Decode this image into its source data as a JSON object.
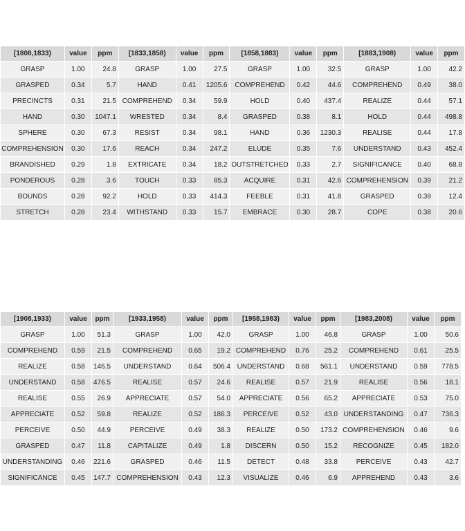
{
  "top_table": {
    "periods": [
      {
        "label": "[1808,1833)",
        "rows": [
          {
            "word": "GRASP",
            "value": "1.00",
            "ppm": "24.8"
          },
          {
            "word": "GRASPED",
            "value": "0.34",
            "ppm": "5.7"
          },
          {
            "word": "PRECINCTS",
            "value": "0.31",
            "ppm": "21.5"
          },
          {
            "word": "HAND",
            "value": "0.30",
            "ppm": "1047.1"
          },
          {
            "word": "SPHERE",
            "value": "0.30",
            "ppm": "67.3"
          },
          {
            "word": "COMPREHENSION",
            "value": "0.30",
            "ppm": "17.6"
          },
          {
            "word": "BRANDISHED",
            "value": "0.29",
            "ppm": "1.8"
          },
          {
            "word": "PONDEROUS",
            "value": "0.28",
            "ppm": "3.6"
          },
          {
            "word": "BOUNDS",
            "value": "0.28",
            "ppm": "92.2"
          },
          {
            "word": "STRETCH",
            "value": "0.28",
            "ppm": "23.4"
          }
        ]
      },
      {
        "label": "[1833,1858)",
        "rows": [
          {
            "word": "GRASP",
            "value": "1.00",
            "ppm": "27.5"
          },
          {
            "word": "HAND",
            "value": "0.41",
            "ppm": "1205.6"
          },
          {
            "word": "COMPREHEND",
            "value": "0.34",
            "ppm": "59.9"
          },
          {
            "word": "WRESTED",
            "value": "0.34",
            "ppm": "8.4"
          },
          {
            "word": "RESIST",
            "value": "0.34",
            "ppm": "98.1"
          },
          {
            "word": "REACH",
            "value": "0.34",
            "ppm": "247.2"
          },
          {
            "word": "EXTRICATE",
            "value": "0.34",
            "ppm": "18.2"
          },
          {
            "word": "TOUCH",
            "value": "0.33",
            "ppm": "85.3"
          },
          {
            "word": "HOLD",
            "value": "0.33",
            "ppm": "414.3"
          },
          {
            "word": "WITHSTAND",
            "value": "0.33",
            "ppm": "15.7"
          }
        ]
      },
      {
        "label": "[1858,1883)",
        "rows": [
          {
            "word": "GRASP",
            "value": "1.00",
            "ppm": "32.5"
          },
          {
            "word": "COMPREHEND",
            "value": "0.42",
            "ppm": "44.6"
          },
          {
            "word": "HOLD",
            "value": "0.40",
            "ppm": "437.4"
          },
          {
            "word": "GRASPED",
            "value": "0.38",
            "ppm": "8.1"
          },
          {
            "word": "HAND",
            "value": "0.36",
            "ppm": "1230.3"
          },
          {
            "word": "ELUDE",
            "value": "0.35",
            "ppm": "7.6"
          },
          {
            "word": "OUTSTRETCHED",
            "value": "0.33",
            "ppm": "2.7"
          },
          {
            "word": "ACQUIRE",
            "value": "0.31",
            "ppm": "42.6"
          },
          {
            "word": "FEEBLE",
            "value": "0.31",
            "ppm": "41.8"
          },
          {
            "word": "EMBRACE",
            "value": "0.30",
            "ppm": "28.7"
          }
        ]
      },
      {
        "label": "[1883,1908)",
        "rows": [
          {
            "word": "GRASP",
            "value": "1.00",
            "ppm": "42.2"
          },
          {
            "word": "COMPREHEND",
            "value": "0.49",
            "ppm": "38.0"
          },
          {
            "word": "REALIZE",
            "value": "0.44",
            "ppm": "57.1"
          },
          {
            "word": "HOLD",
            "value": "0.44",
            "ppm": "498.8"
          },
          {
            "word": "REALISE",
            "value": "0.44",
            "ppm": "17.8"
          },
          {
            "word": "UNDERSTAND",
            "value": "0.43",
            "ppm": "452.4"
          },
          {
            "word": "SIGNIFICANCE",
            "value": "0.40",
            "ppm": "68.8"
          },
          {
            "word": "COMPREHENSION",
            "value": "0.39",
            "ppm": "21.2"
          },
          {
            "word": "GRASPED",
            "value": "0.39",
            "ppm": "12.4"
          },
          {
            "word": "COPE",
            "value": "0.38",
            "ppm": "20.6"
          }
        ]
      }
    ]
  },
  "bottom_table": {
    "periods": [
      {
        "label": "[1908,1933)",
        "rows": [
          {
            "word": "GRASP",
            "value": "1.00",
            "ppm": "51.3"
          },
          {
            "word": "COMPREHEND",
            "value": "0.59",
            "ppm": "21.5"
          },
          {
            "word": "REALIZE",
            "value": "0.58",
            "ppm": "146.5"
          },
          {
            "word": "UNDERSTAND",
            "value": "0.58",
            "ppm": "476.5"
          },
          {
            "word": "REALISE",
            "value": "0.55",
            "ppm": "26.9"
          },
          {
            "word": "APPRECIATE",
            "value": "0.52",
            "ppm": "59.8"
          },
          {
            "word": "PERCEIVE",
            "value": "0.50",
            "ppm": "44.9"
          },
          {
            "word": "GRASPED",
            "value": "0.47",
            "ppm": "11.8"
          },
          {
            "word": "UNDERSTANDING",
            "value": "0.46",
            "ppm": "221.6"
          },
          {
            "word": "SIGNIFICANCE",
            "value": "0.45",
            "ppm": "147.7"
          }
        ]
      },
      {
        "label": "[1933,1958)",
        "rows": [
          {
            "word": "GRASP",
            "value": "1.00",
            "ppm": "42.0"
          },
          {
            "word": "COMPREHEND",
            "value": "0.65",
            "ppm": "19.2"
          },
          {
            "word": "UNDERSTAND",
            "value": "0.64",
            "ppm": "506.4"
          },
          {
            "word": "REALISE",
            "value": "0.57",
            "ppm": "24.6"
          },
          {
            "word": "APPRECIATE",
            "value": "0.57",
            "ppm": "54.0"
          },
          {
            "word": "REALIZE",
            "value": "0.52",
            "ppm": "186.3"
          },
          {
            "word": "PERCEIVE",
            "value": "0.49",
            "ppm": "38.3"
          },
          {
            "word": "CAPITALIZE",
            "value": "0.49",
            "ppm": "1.8"
          },
          {
            "word": "GRASPED",
            "value": "0.46",
            "ppm": "11.5"
          },
          {
            "word": "COMPREHENSION",
            "value": "0.43",
            "ppm": "12.3"
          }
        ]
      },
      {
        "label": "[1958,1983)",
        "rows": [
          {
            "word": "GRASP",
            "value": "1.00",
            "ppm": "46.8"
          },
          {
            "word": "COMPREHEND",
            "value": "0.76",
            "ppm": "25.2"
          },
          {
            "word": "UNDERSTAND",
            "value": "0.68",
            "ppm": "561.1"
          },
          {
            "word": "REALISE",
            "value": "0.57",
            "ppm": "21.9"
          },
          {
            "word": "APPRECIATE",
            "value": "0.56",
            "ppm": "65.2"
          },
          {
            "word": "PERCEIVE",
            "value": "0.52",
            "ppm": "43.0"
          },
          {
            "word": "REALIZE",
            "value": "0.50",
            "ppm": "173.2"
          },
          {
            "word": "DISCERN",
            "value": "0.50",
            "ppm": "15.2"
          },
          {
            "word": "DETECT",
            "value": "0.48",
            "ppm": "33.8"
          },
          {
            "word": "VISUALIZE",
            "value": "0.46",
            "ppm": "6.9"
          }
        ]
      },
      {
        "label": "[1983,2008)",
        "rows": [
          {
            "word": "GRASP",
            "value": "1.00",
            "ppm": "50.6"
          },
          {
            "word": "COMPREHEND",
            "value": "0.61",
            "ppm": "25.5"
          },
          {
            "word": "UNDERSTAND",
            "value": "0.59",
            "ppm": "778.5"
          },
          {
            "word": "REALISE",
            "value": "0.56",
            "ppm": "18.1"
          },
          {
            "word": "APPRECIATE",
            "value": "0.53",
            "ppm": "75.0"
          },
          {
            "word": "UNDERSTANDING",
            "value": "0.47",
            "ppm": "736.3"
          },
          {
            "word": "COMPREHENSION",
            "value": "0.46",
            "ppm": "9.6"
          },
          {
            "word": "RECOGNIZE",
            "value": "0.45",
            "ppm": "182.0"
          },
          {
            "word": "PERCEIVE",
            "value": "0.43",
            "ppm": "42.7"
          },
          {
            "word": "APPREHEND",
            "value": "0.43",
            "ppm": "3.6"
          }
        ]
      }
    ]
  },
  "column_headers": {
    "value": "value",
    "ppm": "ppm"
  }
}
